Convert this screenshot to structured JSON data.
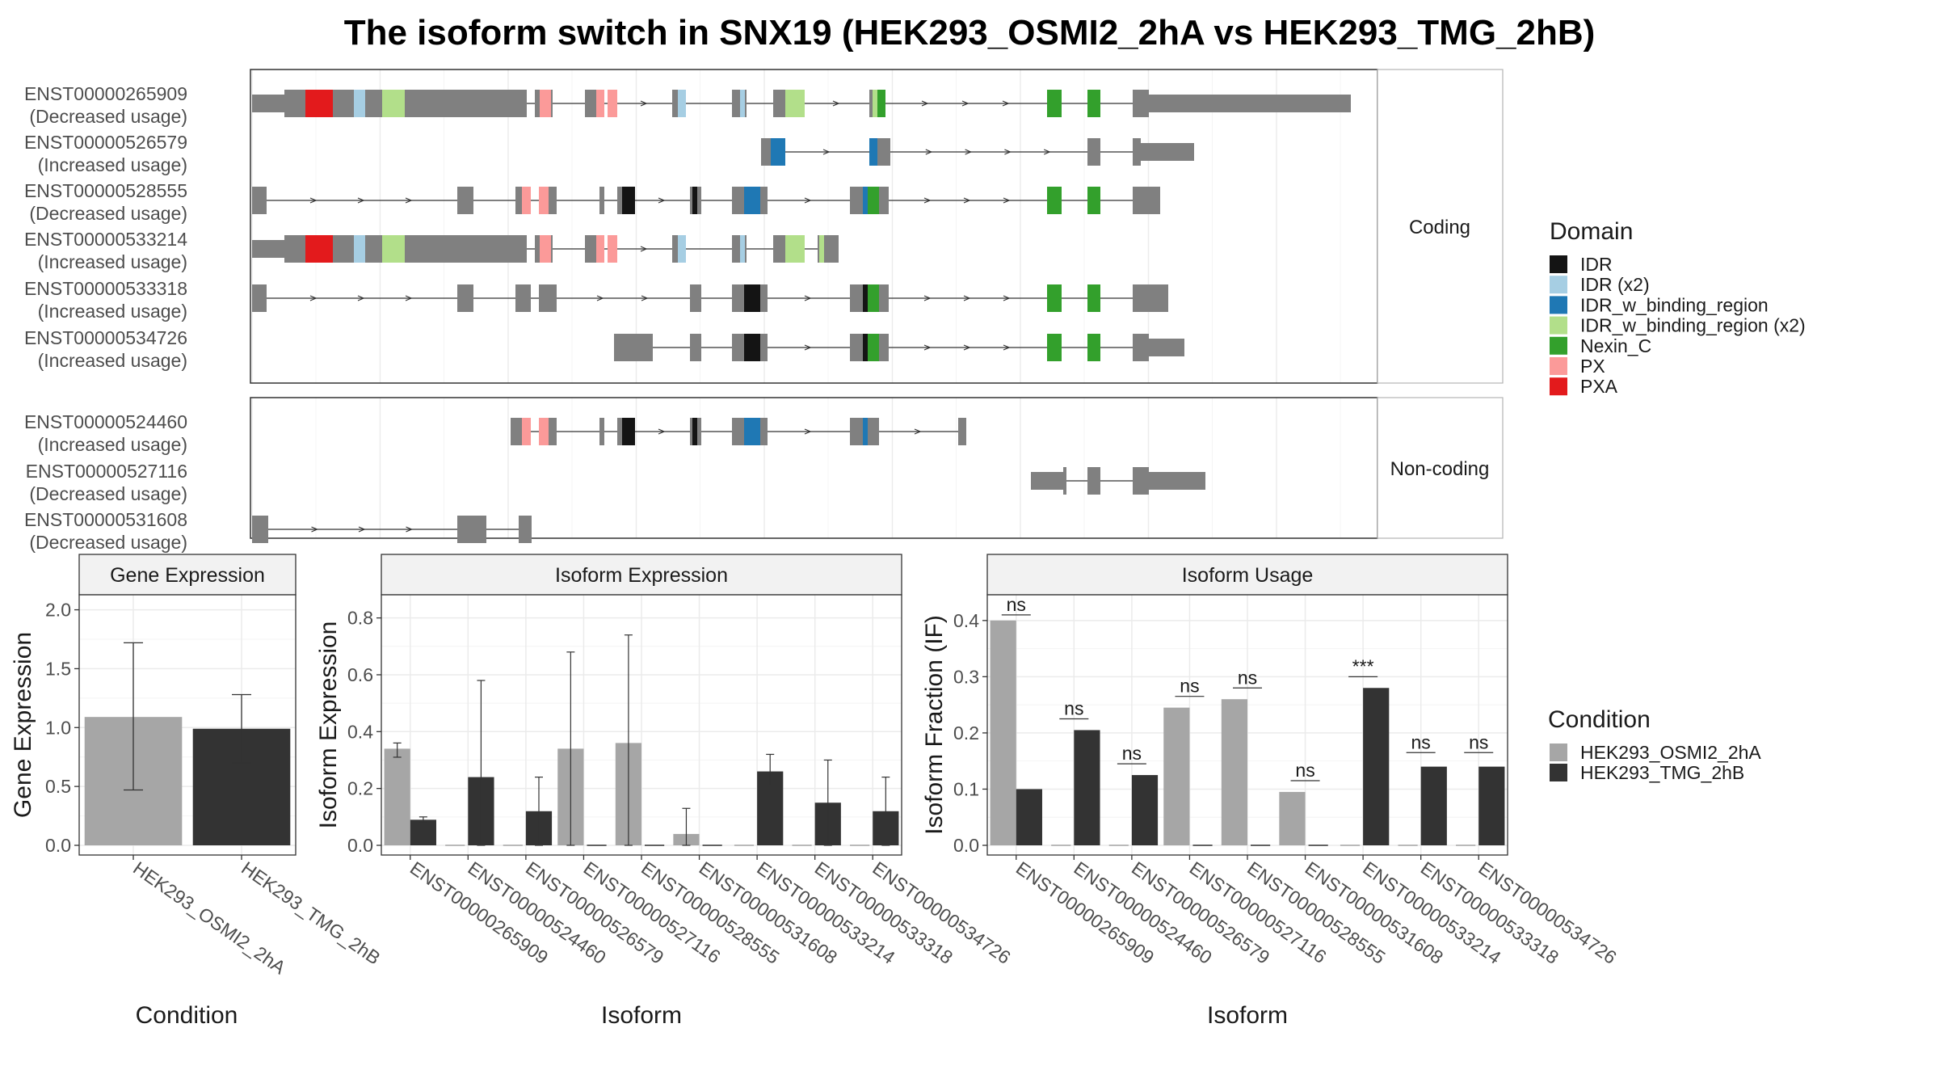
{
  "title": "The isoform switch in SNX19 (HEK293_OSMI2_2hA vs HEK293_TMG_2hB)",
  "colors": {
    "grey_exon": "#808080",
    "IDR": "#141414",
    "IDR (x2)": "#a6cee3",
    "IDR_w_binding_region": "#1f78b4",
    "IDR_w_binding_region (x2)": "#b2df8a",
    "Nexin_C": "#33a02c",
    "PX": "#fb9a99",
    "PXA": "#e31a1c",
    "cond_a": "#a6a6a6",
    "cond_b": "#333333",
    "strip_bg": "#f2f2f2",
    "grid": "#ebebeb"
  },
  "facets": {
    "coding": "Coding",
    "noncoding": "Non-coding"
  },
  "transcripts": [
    {
      "id": "ENST00000265909",
      "usage": "(Decreased usage)",
      "group": "coding",
      "exons": [
        [
          0,
          40
        ],
        [
          40,
          66
        ],
        [
          66,
          126
        ],
        [
          126,
          146
        ],
        [
          146,
          161
        ],
        [
          161,
          189
        ],
        [
          189,
          208
        ],
        [
          208,
          236
        ],
        [
          236,
          260
        ],
        [
          260,
          340
        ],
        [
          350,
          356
        ],
        [
          356,
          372
        ],
        [
          412,
          426
        ],
        [
          426,
          436
        ],
        [
          440,
          452
        ],
        [
          520,
          527
        ],
        [
          527,
          537
        ],
        [
          594,
          604
        ],
        [
          604,
          612
        ],
        [
          645,
          660
        ],
        [
          660,
          684
        ],
        [
          764,
          768
        ],
        [
          768,
          774
        ],
        [
          774,
          784
        ],
        [
          984,
          1002
        ],
        [
          1034,
          1050
        ],
        [
          1090,
          1110
        ],
        [
          1110,
          1360
        ]
      ],
      "domains": [
        [
          66,
          100,
          "PXA"
        ],
        [
          126,
          140,
          "IDR (x2)"
        ],
        [
          161,
          189,
          "IDR_w_binding_region (x2)"
        ],
        [
          356,
          370,
          "PX"
        ],
        [
          426,
          436,
          "PX"
        ],
        [
          440,
          452,
          "PX"
        ],
        [
          527,
          537,
          "IDR (x2)"
        ],
        [
          604,
          610,
          "IDR (x2)"
        ],
        [
          660,
          684,
          "IDR_w_binding_region (x2)"
        ],
        [
          768,
          774,
          "IDR_w_binding_region (x2)"
        ],
        [
          774,
          784,
          "Nexin_C"
        ],
        [
          984,
          1002,
          "Nexin_C"
        ],
        [
          1034,
          1050,
          "Nexin_C"
        ]
      ]
    },
    {
      "id": "ENST00000526579",
      "usage": "(Increased usage)",
      "group": "coding",
      "exons": [
        [
          630,
          642
        ],
        [
          642,
          660
        ],
        [
          764,
          774
        ],
        [
          774,
          790
        ],
        [
          1034,
          1050
        ],
        [
          1090,
          1100
        ],
        [
          1100,
          1166
        ]
      ],
      "domains": [
        [
          642,
          660,
          "IDR_w_binding_region"
        ],
        [
          764,
          774,
          "IDR_w_binding_region"
        ]
      ]
    },
    {
      "id": "ENST00000528555",
      "usage": "(Decreased usage)",
      "group": "coding",
      "exons": [
        [
          0,
          18
        ],
        [
          254,
          274
        ],
        [
          326,
          334
        ],
        [
          334,
          345
        ],
        [
          355,
          367
        ],
        [
          366,
          377
        ],
        [
          430,
          436
        ],
        [
          452,
          458
        ],
        [
          458,
          474
        ],
        [
          542,
          545
        ],
        [
          545,
          556
        ],
        [
          594,
          609
        ],
        [
          609,
          629
        ],
        [
          629,
          638
        ],
        [
          740,
          756
        ],
        [
          756,
          776
        ],
        [
          774,
          788
        ],
        [
          984,
          1002
        ],
        [
          1034,
          1050
        ],
        [
          1090,
          1110
        ],
        [
          1110,
          1124
        ]
      ],
      "domains": [
        [
          334,
          345,
          "PX"
        ],
        [
          355,
          367,
          "PX"
        ],
        [
          458,
          474,
          "IDR"
        ],
        [
          545,
          551,
          "IDR"
        ],
        [
          609,
          629,
          "IDR_w_binding_region"
        ],
        [
          756,
          762,
          "IDR_w_binding_region"
        ],
        [
          762,
          776,
          "Nexin_C"
        ],
        [
          984,
          1002,
          "Nexin_C"
        ],
        [
          1034,
          1050,
          "Nexin_C"
        ]
      ]
    },
    {
      "id": "ENST00000533214",
      "usage": "(Increased usage)",
      "group": "coding",
      "exons": [
        [
          0,
          40
        ],
        [
          40,
          66
        ],
        [
          66,
          126
        ],
        [
          126,
          146
        ],
        [
          146,
          161
        ],
        [
          161,
          189
        ],
        [
          189,
          208
        ],
        [
          208,
          236
        ],
        [
          236,
          260
        ],
        [
          260,
          340
        ],
        [
          350,
          356
        ],
        [
          356,
          372
        ],
        [
          412,
          426
        ],
        [
          426,
          436
        ],
        [
          440,
          452
        ],
        [
          520,
          527
        ],
        [
          527,
          537
        ],
        [
          594,
          604
        ],
        [
          604,
          612
        ],
        [
          645,
          660
        ],
        [
          660,
          684
        ],
        [
          700,
          702
        ],
        [
          702,
          708
        ],
        [
          708,
          726
        ]
      ],
      "domains": [
        [
          66,
          100,
          "PXA"
        ],
        [
          126,
          140,
          "IDR (x2)"
        ],
        [
          161,
          189,
          "IDR_w_binding_region (x2)"
        ],
        [
          356,
          370,
          "PX"
        ],
        [
          426,
          436,
          "PX"
        ],
        [
          440,
          452,
          "PX"
        ],
        [
          527,
          537,
          "IDR (x2)"
        ],
        [
          604,
          610,
          "IDR (x2)"
        ],
        [
          660,
          684,
          "IDR_w_binding_region (x2)"
        ],
        [
          702,
          708,
          "IDR_w_binding_region (x2)"
        ]
      ]
    },
    {
      "id": "ENST00000533318",
      "usage": "(Increased usage)",
      "group": "coding",
      "exons": [
        [
          0,
          18
        ],
        [
          254,
          274
        ],
        [
          326,
          345
        ],
        [
          355,
          377
        ],
        [
          542,
          556
        ],
        [
          594,
          606
        ],
        [
          606,
          609
        ],
        [
          609,
          629
        ],
        [
          629,
          638
        ],
        [
          740,
          756
        ],
        [
          756,
          776
        ],
        [
          774,
          788
        ],
        [
          984,
          1002
        ],
        [
          1034,
          1050
        ],
        [
          1090,
          1110
        ],
        [
          1110,
          1134
        ]
      ],
      "domains": [
        [
          609,
          629,
          "IDR"
        ],
        [
          756,
          762,
          "IDR"
        ],
        [
          762,
          776,
          "Nexin_C"
        ],
        [
          984,
          1002,
          "Nexin_C"
        ],
        [
          1034,
          1050,
          "Nexin_C"
        ]
      ]
    },
    {
      "id": "ENST00000534726",
      "usage": "(Increased usage)",
      "group": "coding",
      "exons": [
        [
          448,
          470
        ],
        [
          470,
          496
        ],
        [
          542,
          556
        ],
        [
          594,
          606
        ],
        [
          606,
          609
        ],
        [
          609,
          629
        ],
        [
          629,
          638
        ],
        [
          740,
          756
        ],
        [
          756,
          776
        ],
        [
          774,
          788
        ],
        [
          984,
          1002
        ],
        [
          1034,
          1050
        ],
        [
          1090,
          1110
        ],
        [
          1110,
          1154
        ]
      ],
      "domains": [
        [
          609,
          629,
          "IDR"
        ],
        [
          756,
          762,
          "IDR"
        ],
        [
          762,
          776,
          "Nexin_C"
        ],
        [
          984,
          1002,
          "Nexin_C"
        ],
        [
          1034,
          1050,
          "Nexin_C"
        ]
      ]
    },
    {
      "id": "ENST00000524460",
      "usage": "(Increased usage)",
      "group": "noncoding",
      "exons": [
        [
          320,
          334
        ],
        [
          334,
          345
        ],
        [
          355,
          367
        ],
        [
          366,
          377
        ],
        [
          430,
          436
        ],
        [
          452,
          458
        ],
        [
          458,
          474
        ],
        [
          542,
          545
        ],
        [
          545,
          556
        ],
        [
          594,
          609
        ],
        [
          609,
          629
        ],
        [
          629,
          638
        ],
        [
          740,
          756
        ],
        [
          756,
          776
        ],
        [
          874,
          884
        ]
      ],
      "domains": [
        [
          334,
          345,
          "PX"
        ],
        [
          355,
          367,
          "PX"
        ],
        [
          458,
          474,
          "IDR"
        ],
        [
          545,
          551,
          "IDR"
        ],
        [
          609,
          629,
          "IDR_w_binding_region"
        ],
        [
          756,
          762,
          "IDR_w_binding_region"
        ]
      ]
    },
    {
      "id": "ENST00000527116",
      "usage": "(Decreased usage)",
      "group": "noncoding",
      "exons": [
        [
          964,
          1004
        ],
        [
          1004,
          1008
        ],
        [
          1034,
          1050
        ],
        [
          1090,
          1110
        ],
        [
          1110,
          1180
        ]
      ],
      "domains": []
    },
    {
      "id": "ENST00000531608",
      "usage": "(Decreased usage)",
      "group": "noncoding",
      "exons": [
        [
          0,
          20
        ],
        [
          254,
          290
        ],
        [
          330,
          346
        ]
      ],
      "domains": []
    }
  ],
  "legend_domain": {
    "title": "Domain",
    "items": [
      "IDR",
      "IDR (x2)",
      "IDR_w_binding_region",
      "IDR_w_binding_region (x2)",
      "Nexin_C",
      "PX",
      "PXA"
    ]
  },
  "legend_condition": {
    "title": "Condition",
    "items": [
      "HEK293_OSMI2_2hA",
      "HEK293_TMG_2hB"
    ]
  },
  "chart_data": [
    {
      "type": "bar",
      "title": "Gene Expression",
      "xlabel": "Condition",
      "ylabel": "Gene Expression",
      "ylim": [
        0,
        2.1
      ],
      "yticks": [
        "0.0",
        "0.5",
        "1.0",
        "1.5",
        "2.0"
      ],
      "categories": [
        "HEK293_OSMI2_2hA",
        "HEK293_TMG_2hB"
      ],
      "values": [
        1.09,
        0.99
      ],
      "err_low": [
        0.47,
        0.7
      ],
      "err_high": [
        1.72,
        1.28
      ]
    },
    {
      "type": "bar",
      "title": "Isoform Expression",
      "xlabel": "Isoform",
      "ylabel": "Isoform Expression",
      "ylim": [
        0,
        0.87
      ],
      "yticks": [
        "0.0",
        "0.2",
        "0.4",
        "0.6",
        "0.8"
      ],
      "categories": [
        "ENST00000265909",
        "ENST00000524460",
        "ENST00000526579",
        "ENST00000527116",
        "ENST00000528555",
        "ENST00000531608",
        "ENST00000533214",
        "ENST00000533318",
        "ENST00000534726"
      ],
      "series": [
        {
          "name": "HEK293_OSMI2_2hA",
          "values": [
            0.34,
            0,
            0,
            0.34,
            0.36,
            0.04,
            0,
            0,
            0
          ],
          "err_low": [
            0.31,
            0,
            0,
            0,
            0,
            0,
            0,
            0,
            0
          ],
          "err_high": [
            0.36,
            0,
            0,
            0.68,
            0.74,
            0.13,
            0,
            0,
            0
          ]
        },
        {
          "name": "HEK293_TMG_2hB",
          "values": [
            0.09,
            0.24,
            0.12,
            0,
            0,
            0,
            0.26,
            0.15,
            0.12
          ],
          "err_low": [
            0.08,
            0,
            0,
            0,
            0,
            0,
            0.21,
            0,
            0
          ],
          "err_high": [
            0.1,
            0.58,
            0.24,
            0,
            0,
            0,
            0.32,
            0.3,
            0.24
          ]
        }
      ]
    },
    {
      "type": "bar",
      "title": "Isoform Usage",
      "xlabel": "Isoform",
      "ylabel": "Isoform Fraction (IF)",
      "ylim": [
        0,
        0.44
      ],
      "yticks": [
        "0.0",
        "0.1",
        "0.2",
        "0.3",
        "0.4"
      ],
      "categories": [
        "ENST00000265909",
        "ENST00000524460",
        "ENST00000526579",
        "ENST00000527116",
        "ENST00000528555",
        "ENST00000531608",
        "ENST00000533214",
        "ENST00000533318",
        "ENST00000534726"
      ],
      "series": [
        {
          "name": "HEK293_OSMI2_2hA",
          "values": [
            0.4,
            0,
            0,
            0.245,
            0.26,
            0.095,
            0,
            0,
            0
          ]
        },
        {
          "name": "HEK293_TMG_2hB",
          "values": [
            0.1,
            0.205,
            0.125,
            0,
            0,
            0,
            0.28,
            0.14,
            0.14
          ]
        }
      ],
      "significance": [
        "ns",
        "ns",
        "ns",
        "ns",
        "ns",
        "ns",
        "***",
        "ns",
        "ns"
      ],
      "sig_y": [
        0.41,
        0.225,
        0.145,
        0.265,
        0.28,
        0.115,
        0.3,
        0.165,
        0.165
      ]
    }
  ]
}
